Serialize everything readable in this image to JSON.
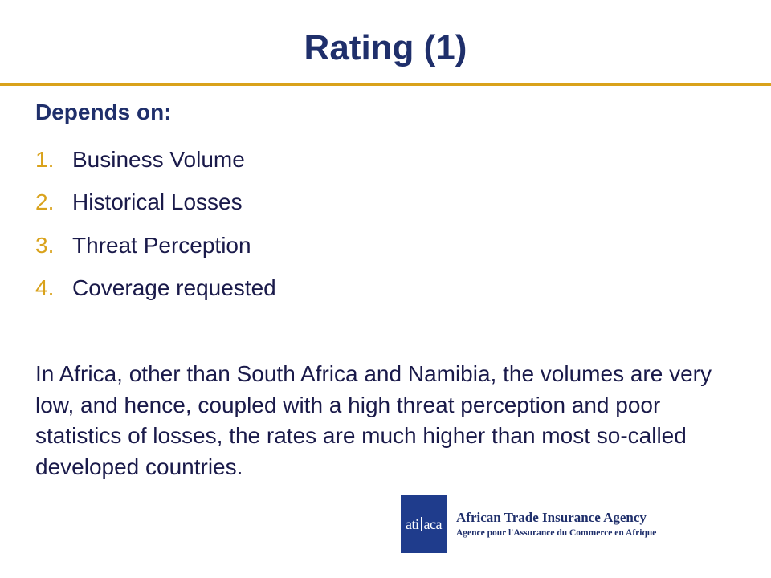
{
  "title": "Rating (1)",
  "subheading": "Depends on:",
  "list": [
    {
      "num": "1.",
      "label": "Business Volume"
    },
    {
      "num": "2.",
      "label": "Historical Losses"
    },
    {
      "num": "3.",
      "label": "Threat Perception"
    },
    {
      "num": "4.",
      "label": "Coverage requested"
    }
  ],
  "paragraph": "In Africa, other than South Africa and Namibia, the volumes are very low, and hence, coupled with a high threat perception and poor statistics of losses, the rates are much higher than most so-called developed countries.",
  "logo": {
    "mark_left": "ati",
    "mark_right": "aca",
    "name": "African Trade Insurance Agency",
    "tagline": "Agence pour l'Assurance du Commerce en Afrique"
  },
  "colors": {
    "title": "#1f2f6b",
    "accent": "#d9a21b",
    "text": "#1a1a4a",
    "logo_blue": "#1f3c8c"
  }
}
